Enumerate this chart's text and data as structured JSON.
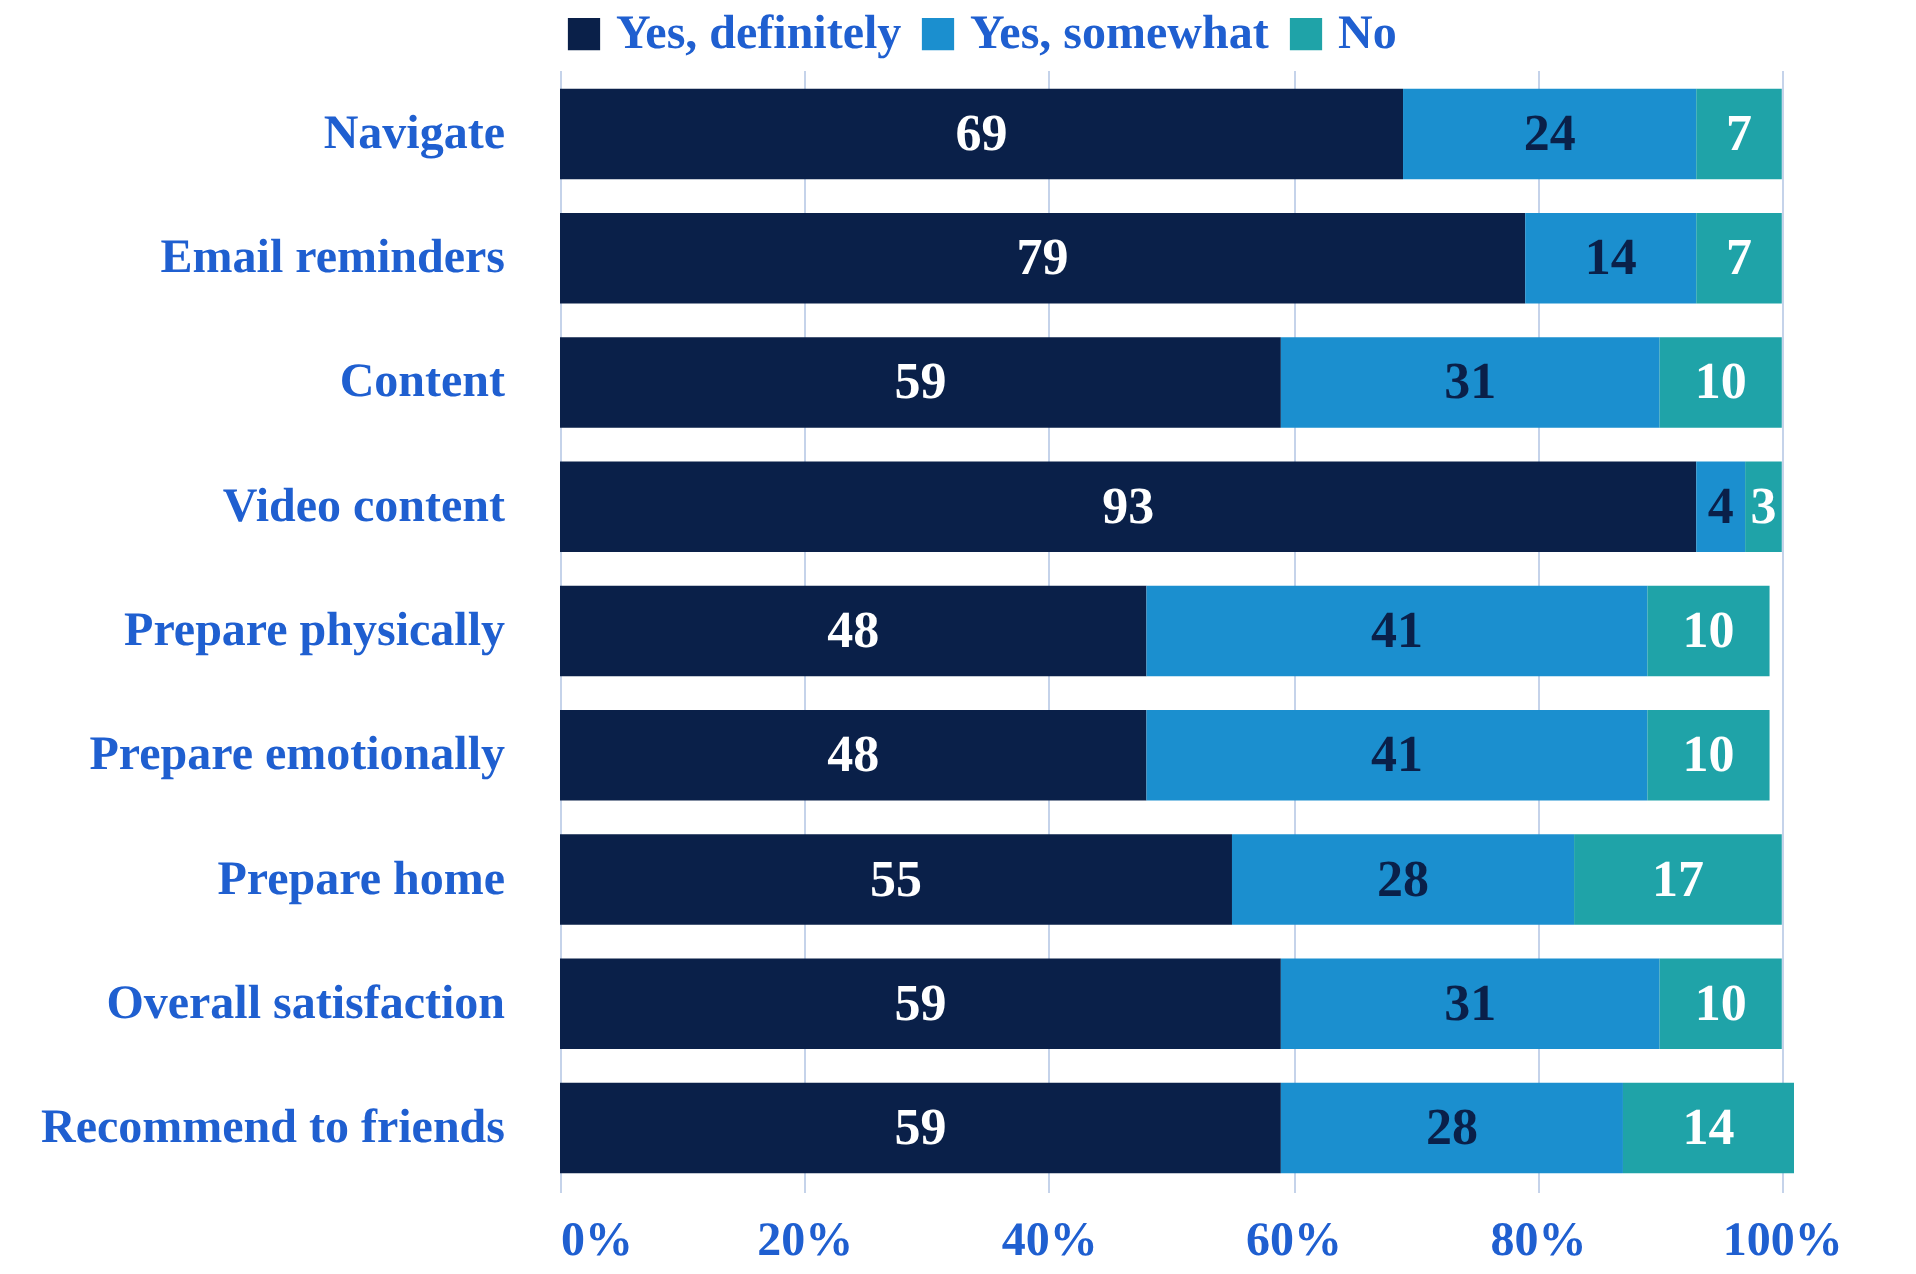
{
  "chart_data": {
    "type": "bar",
    "orientation": "horizontal",
    "stacked": true,
    "data_labels": true,
    "grid": "x",
    "legend": "top",
    "categories": [
      "Navigate",
      "Email reminders",
      "Content",
      "Video content",
      "Prepare physically",
      "Prepare emotionally",
      "Prepare home",
      "Overall satisfaction",
      "Recommend to friends"
    ],
    "series": [
      {
        "name": "Yes, definitely",
        "color": "#0a2049",
        "values": [
          69,
          79,
          59,
          93,
          48,
          48,
          55,
          59,
          59
        ]
      },
      {
        "name": "Yes, somewhat",
        "color": "#1b8fcf",
        "values": [
          24,
          14,
          31,
          4,
          41,
          41,
          28,
          31,
          28
        ]
      },
      {
        "name": "No",
        "color": "#1fa3a8",
        "values": [
          7,
          7,
          10,
          3,
          10,
          10,
          17,
          10,
          14
        ]
      }
    ],
    "xlim": [
      0,
      101
    ],
    "xticks": [
      {
        "value": 0,
        "label": "0%"
      },
      {
        "value": 20,
        "label": "20%"
      },
      {
        "value": 40,
        "label": "40%"
      },
      {
        "value": 60,
        "label": "60%"
      },
      {
        "value": 80,
        "label": "80%"
      },
      {
        "value": 100,
        "label": "100%"
      }
    ]
  }
}
